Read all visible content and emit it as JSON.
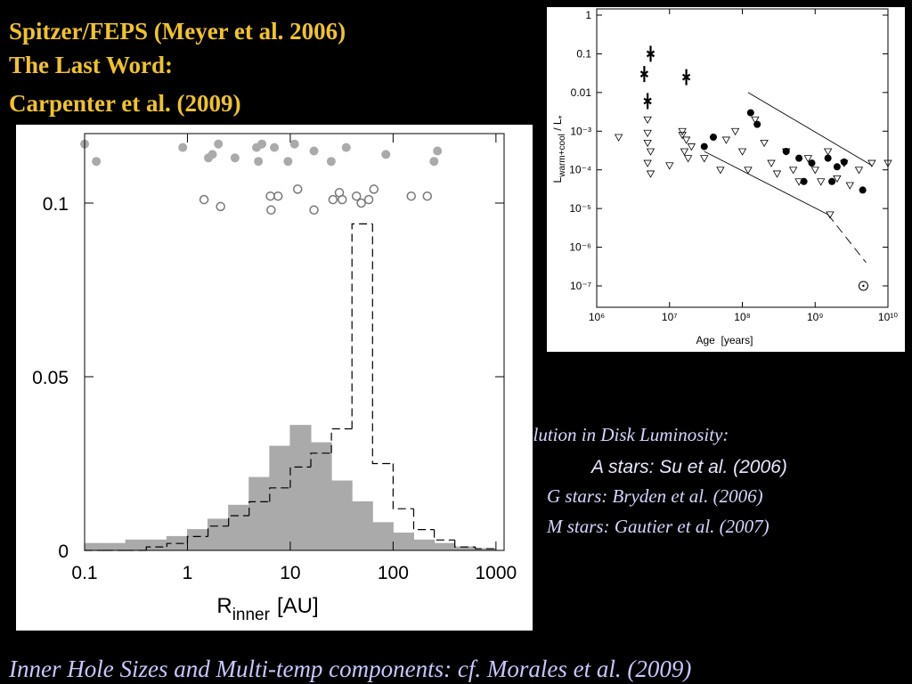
{
  "header": {
    "lines": [
      "Spitzer/FEPS (Meyer et al. 2006)",
      "The Last Word:",
      "Carpenter et al. (2009)"
    ]
  },
  "notes": {
    "heading": "olution in Disk Luminosity:",
    "items": [
      "A stars: Su et al. (2006)",
      "G stars: Bryden et al. (2006)",
      "M stars: Gautier et al. (2007)"
    ]
  },
  "caption": "Inner Hole Sizes and Multi-temp components:  cf. Morales et al. (2009)",
  "chart_data": [
    {
      "type": "histogram",
      "xlabel": [
        "R",
        "inner",
        "[AU]"
      ],
      "xlog": true,
      "xlim": [
        0.1,
        1200
      ],
      "ylim": [
        0,
        0.12
      ],
      "xticks": [
        0.1,
        1,
        10,
        100,
        1000
      ],
      "yticks": [
        0,
        0.05,
        0.1
      ],
      "bins": [
        0.1,
        0.158,
        0.251,
        0.398,
        0.631,
        1,
        1.585,
        2.512,
        3.981,
        6.31,
        10,
        15.85,
        25.12,
        39.81,
        63.1,
        100,
        158.5,
        251.2,
        398.1,
        631,
        1000
      ],
      "series": [
        {
          "color": "#aaaaaa",
          "fill": true,
          "values": [
            0.002,
            0.002,
            0.003,
            0.003,
            0.004,
            0.006,
            0.009,
            0.013,
            0.021,
            0.03,
            0.036,
            0.031,
            0.02,
            0.014,
            0.008,
            0.005,
            0.003,
            0.002,
            0.001,
            0.0005
          ]
        },
        {
          "color": "#000000",
          "fill": false,
          "dash": true,
          "values": [
            0,
            0,
            0,
            0.001,
            0.002,
            0.004,
            0.007,
            0.01,
            0.014,
            0.018,
            0.024,
            0.028,
            0.035,
            0.094,
            0.025,
            0.012,
            0.006,
            0.003,
            0.001,
            0.0005
          ]
        }
      ],
      "points": [
        {
          "marker": "filled",
          "color": "#aaaaaa",
          "x": [
            0.1,
            0.13,
            0.9,
            1.6,
            1.75,
            2.0,
            2.9,
            4.7,
            4.9,
            5.3,
            7.0,
            9.5,
            11,
            17,
            25,
            35,
            85,
            250,
            270
          ],
          "y": [
            0.117,
            0.112,
            0.116,
            0.113,
            0.114,
            0.117,
            0.113,
            0.116,
            0.112,
            0.117,
            0.116,
            0.112,
            0.117,
            0.115,
            0.112,
            0.116,
            0.114,
            0.112,
            0.115
          ]
        },
        {
          "marker": "open",
          "color": "#777777",
          "x": [
            1.45,
            2.1,
            6.4,
            6.5,
            7.6,
            11.8,
            17,
            26,
            30,
            32,
            44,
            49,
            58,
            65,
            150,
            215
          ],
          "y": [
            0.101,
            0.099,
            0.102,
            0.098,
            0.102,
            0.104,
            0.098,
            0.101,
            0.103,
            0.101,
            0.102,
            0.1,
            0.101,
            0.104,
            0.102,
            0.102
          ]
        }
      ]
    },
    {
      "type": "scatter",
      "xlabel": "Age  [years]",
      "ylabel": [
        "L",
        "warm+cool",
        " / L",
        "*"
      ],
      "xlog": true,
      "ylog": true,
      "xlim": [
        1000000,
        10000000000
      ],
      "ylim": [
        2.8e-08,
        1.45
      ],
      "xticks": [
        {
          "value": 1000000,
          "label": "10⁶"
        },
        {
          "value": 10000000,
          "label": "10⁷"
        },
        {
          "value": 100000000,
          "label": "10⁸"
        },
        {
          "value": 1000000000,
          "label": "10⁹"
        },
        {
          "value": 10000000000,
          "label": "10¹⁰"
        }
      ],
      "yticks": [
        1,
        0.1,
        0.01,
        {
          "value": 0.001,
          "label": "10⁻³"
        },
        {
          "value": 0.0001,
          "label": "10⁻⁴"
        },
        {
          "value": 1e-05,
          "label": "10⁻⁵"
        },
        {
          "value": 1e-06,
          "label": "10⁻⁶"
        },
        {
          "value": 1e-07,
          "label": "10⁻⁷"
        }
      ],
      "series": [
        {
          "marker": "triangle-down",
          "color": "#000000",
          "x": [
            2000000,
            5000000,
            5000000,
            5500000,
            5000000,
            5500000,
            5000000,
            15000000,
            17000000,
            20000000,
            16000000,
            18000000,
            15000000,
            10000000,
            30000000,
            50000000,
            60000000,
            80000000,
            100000000,
            120000000,
            150000000,
            200000000,
            250000000,
            300000000,
            400000000,
            500000000,
            600000000,
            800000000,
            1000000000,
            1200000000,
            1500000000,
            2000000000,
            2500000000,
            3000000000,
            4000000000,
            6000000000,
            10000000000,
            1600000000
          ],
          "y": [
            0.0007,
            0.0009,
            0.0005,
            0.0003,
            0.00015,
            8e-05,
            0.002,
            0.001,
            0.0006,
            0.0004,
            0.0003,
            0.0002,
            0.0008,
            0.00013,
            0.0002,
            0.0001,
            0.0006,
            0.001,
            0.0003,
            0.0001,
            0.002,
            0.0005,
            0.00015,
            8e-05,
            0.0003,
            0.0001,
            5e-05,
            0.0002,
            0.0001,
            5e-05,
            0.0003,
            6e-05,
            0.00015,
            4e-05,
            0.0001,
            0.00015,
            0.00015,
            7e-06
          ]
        },
        {
          "marker": "circle",
          "color": "#000000",
          "x": [
            30000000,
            40000000,
            130000000,
            160000000,
            400000000,
            600000000,
            700000000,
            900000000,
            1500000000,
            1700000000,
            2000000000,
            2500000000,
            4500000000
          ],
          "y": [
            0.0004,
            0.0007,
            0.003,
            0.0015,
            0.0003,
            0.0002,
            5e-05,
            0.00015,
            0.0002,
            5e-05,
            0.00012,
            0.00016,
            3e-05
          ]
        },
        {
          "marker": "star",
          "color": "#000000",
          "x": [
            4500000,
            5500000,
            5000000,
            17000000
          ],
          "y": [
            0.03,
            0.1,
            0.006,
            0.025
          ]
        },
        {
          "marker": "sun",
          "color": "#000000",
          "x": [
            4600000000
          ],
          "y": [
            1e-07
          ]
        }
      ],
      "lines": [
        {
          "dash": false,
          "x": [
            120000000,
            6000000000
          ],
          "y": [
            0.01,
            0.00013
          ]
        },
        {
          "dash": false,
          "x": [
            30000000,
            1500000000
          ],
          "y": [
            0.0003,
            7e-06
          ]
        },
        {
          "dash": true,
          "x": [
            1500000000,
            5000000000
          ],
          "y": [
            7e-06,
            4e-07
          ]
        }
      ]
    }
  ]
}
